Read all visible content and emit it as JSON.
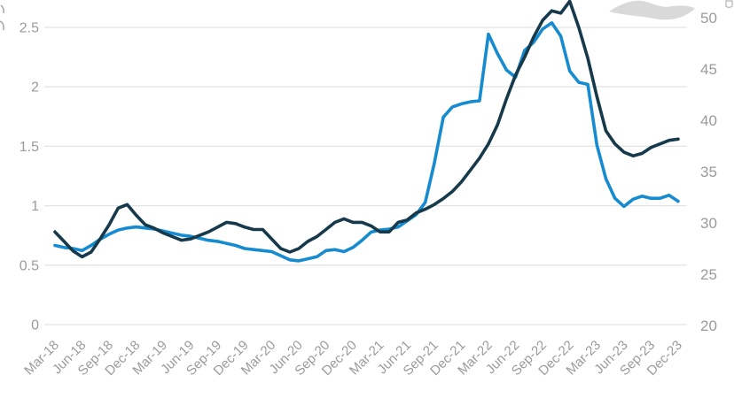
{
  "chart_data": {
    "type": "line",
    "title": "",
    "x_unit": "monthly",
    "x_range_label": "Mar-18 to Dec-23",
    "x_tick_labels": [
      "Mar-18",
      "Jun-18",
      "Sep-18",
      "Dec-18",
      "Mar-19",
      "Jun-19",
      "Sep-19",
      "Dec-19",
      "Mar-20",
      "Jun-20",
      "Sep-20",
      "Dec-20",
      "Mar-21",
      "Jun-21",
      "Sep-21",
      "Dec-21",
      "Mar-22",
      "Jun-22",
      "Sep-22",
      "Dec-22",
      "Mar-23",
      "Jun-23",
      "Sep-23",
      "Dec-23"
    ],
    "left_axis": {
      "tick_labels": [
        "0",
        "0.5",
        "1",
        "1.5",
        "2",
        "2.5"
      ],
      "range": [
        0,
        2.72
      ]
    },
    "right_axis": {
      "tick_labels": [
        "20",
        "25",
        "30",
        "35",
        "40",
        "45",
        "50"
      ],
      "range": [
        20,
        50
      ]
    },
    "grid": "horizontal",
    "series": [
      {
        "name": "series-dark",
        "axis": "left",
        "color": "#16394b",
        "values": [
          0.78,
          0.7,
          0.62,
          0.57,
          0.61,
          0.72,
          0.84,
          0.98,
          1.01,
          0.92,
          0.84,
          0.81,
          0.77,
          0.74,
          0.71,
          0.72,
          0.75,
          0.78,
          0.82,
          0.86,
          0.85,
          0.82,
          0.8,
          0.8,
          0.72,
          0.64,
          0.61,
          0.64,
          0.7,
          0.74,
          0.8,
          0.86,
          0.89,
          0.86,
          0.86,
          0.83,
          0.78,
          0.78,
          0.86,
          0.88,
          0.94,
          0.97,
          1.01,
          1.06,
          1.12,
          1.2,
          1.3,
          1.4,
          1.52,
          1.68,
          1.9,
          2.1,
          2.25,
          2.42,
          2.56,
          2.64,
          2.62,
          2.72,
          2.5,
          2.24,
          1.92,
          1.63,
          1.52,
          1.45,
          1.42,
          1.44,
          1.49,
          1.52,
          1.55,
          1.56
        ]
      },
      {
        "name": "series-blue",
        "axis": "right",
        "color": "#168bd0",
        "values": [
          27.8,
          27.6,
          27.5,
          27.3,
          27.8,
          28.4,
          28.9,
          29.3,
          29.5,
          29.6,
          29.5,
          29.4,
          29.2,
          29.0,
          28.8,
          28.7,
          28.5,
          28.3,
          28.2,
          28.0,
          27.8,
          27.5,
          27.4,
          27.3,
          27.2,
          26.8,
          26.4,
          26.3,
          26.5,
          26.7,
          27.3,
          27.4,
          27.2,
          27.6,
          28.3,
          29.1,
          29.3,
          29.4,
          29.6,
          30.2,
          30.8,
          32.0,
          35.8,
          40.3,
          41.3,
          41.6,
          41.8,
          41.9,
          48.4,
          46.5,
          44.9,
          44.2,
          46.8,
          47.6,
          48.9,
          49.5,
          48.2,
          44.8,
          43.7,
          43.5,
          37.6,
          34.3,
          32.4,
          31.6,
          32.3,
          32.6,
          32.4,
          32.4,
          32.7,
          32.1
        ]
      }
    ],
    "colors": {
      "gridline": "#e4e4e4",
      "axis_text": "#9b9b9b",
      "brand_swoosh": "#d9d9d9"
    }
  }
}
